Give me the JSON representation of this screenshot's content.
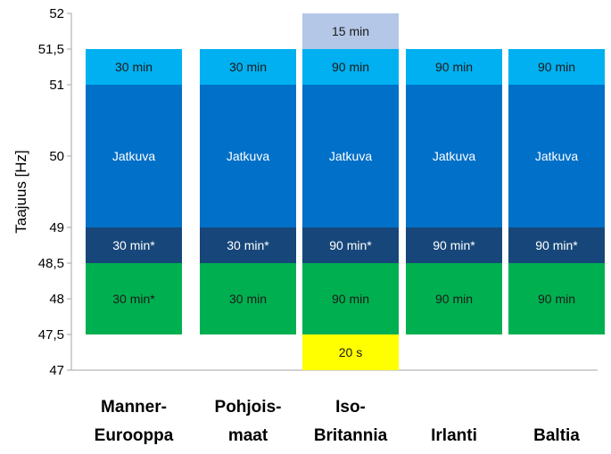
{
  "chart_data": {
    "type": "bar",
    "subtype": "stacked-range",
    "ylabel": "Taajuus [Hz]",
    "xlabel": "",
    "ylim": [
      47,
      52
    ],
    "y_ticks": [
      {
        "value": 47,
        "label": "47"
      },
      {
        "value": 47.5,
        "label": "47,5"
      },
      {
        "value": 48,
        "label": "48"
      },
      {
        "value": 48.5,
        "label": "48,5"
      },
      {
        "value": 49,
        "label": "49"
      },
      {
        "value": 50,
        "label": "50"
      },
      {
        "value": 51,
        "label": "51"
      },
      {
        "value": 51.5,
        "label": "51,5"
      },
      {
        "value": 52,
        "label": "52"
      }
    ],
    "categories": [
      {
        "lines": [
          "Manner-",
          "Eurooppa"
        ]
      },
      {
        "lines": [
          "Pohjois-",
          "maat"
        ]
      },
      {
        "lines": [
          "Iso-",
          "Britannia"
        ]
      },
      {
        "lines": [
          "Irlanti"
        ]
      },
      {
        "lines": [
          "Baltia"
        ]
      }
    ],
    "segments": [
      [
        {
          "from": 47.5,
          "to": 48.5,
          "label": "30 min*",
          "color": "#00b050",
          "text_color": "#1a1a1a"
        },
        {
          "from": 48.5,
          "to": 49,
          "label": "30 min*",
          "color": "#17477a",
          "text_color": "#ffffff"
        },
        {
          "from": 49,
          "to": 51,
          "label": "Jatkuva",
          "color": "#0070c8",
          "text_color": "#ffffff"
        },
        {
          "from": 51,
          "to": 51.5,
          "label": "30 min",
          "color": "#00b0f0",
          "text_color": "#1a1a1a"
        }
      ],
      [
        {
          "from": 47.5,
          "to": 48.5,
          "label": "30 min",
          "color": "#00b050",
          "text_color": "#1a1a1a"
        },
        {
          "from": 48.5,
          "to": 49,
          "label": "30 min*",
          "color": "#17477a",
          "text_color": "#ffffff"
        },
        {
          "from": 49,
          "to": 51,
          "label": "Jatkuva",
          "color": "#0070c8",
          "text_color": "#ffffff"
        },
        {
          "from": 51,
          "to": 51.5,
          "label": "30 min",
          "color": "#00b0f0",
          "text_color": "#1a1a1a"
        }
      ],
      [
        {
          "from": 47,
          "to": 47.5,
          "label": "20 s",
          "color": "#ffff00",
          "text_color": "#1a1a1a"
        },
        {
          "from": 47.5,
          "to": 48.5,
          "label": "90 min",
          "color": "#00b050",
          "text_color": "#1a1a1a"
        },
        {
          "from": 48.5,
          "to": 49,
          "label": "90 min*",
          "color": "#17477a",
          "text_color": "#ffffff"
        },
        {
          "from": 49,
          "to": 51,
          "label": "Jatkuva",
          "color": "#0070c8",
          "text_color": "#ffffff"
        },
        {
          "from": 51,
          "to": 51.5,
          "label": "90 min",
          "color": "#00b0f0",
          "text_color": "#1a1a1a"
        },
        {
          "from": 51.5,
          "to": 52,
          "label": "15 min",
          "color": "#b4c7e7",
          "text_color": "#1a1a1a"
        }
      ],
      [
        {
          "from": 47.5,
          "to": 48.5,
          "label": "90 min",
          "color": "#00b050",
          "text_color": "#1a1a1a"
        },
        {
          "from": 48.5,
          "to": 49,
          "label": "90 min*",
          "color": "#17477a",
          "text_color": "#ffffff"
        },
        {
          "from": 49,
          "to": 51,
          "label": "Jatkuva",
          "color": "#0070c8",
          "text_color": "#ffffff"
        },
        {
          "from": 51,
          "to": 51.5,
          "label": "90 min",
          "color": "#00b0f0",
          "text_color": "#1a1a1a"
        }
      ],
      [
        {
          "from": 47.5,
          "to": 48.5,
          "label": "90 min",
          "color": "#00b050",
          "text_color": "#1a1a1a"
        },
        {
          "from": 48.5,
          "to": 49,
          "label": "90 min*",
          "color": "#17477a",
          "text_color": "#ffffff"
        },
        {
          "from": 49,
          "to": 51,
          "label": "Jatkuva",
          "color": "#0070c8",
          "text_color": "#ffffff"
        },
        {
          "from": 51,
          "to": 51.5,
          "label": "90 min",
          "color": "#00b0f0",
          "text_color": "#1a1a1a"
        }
      ]
    ]
  }
}
